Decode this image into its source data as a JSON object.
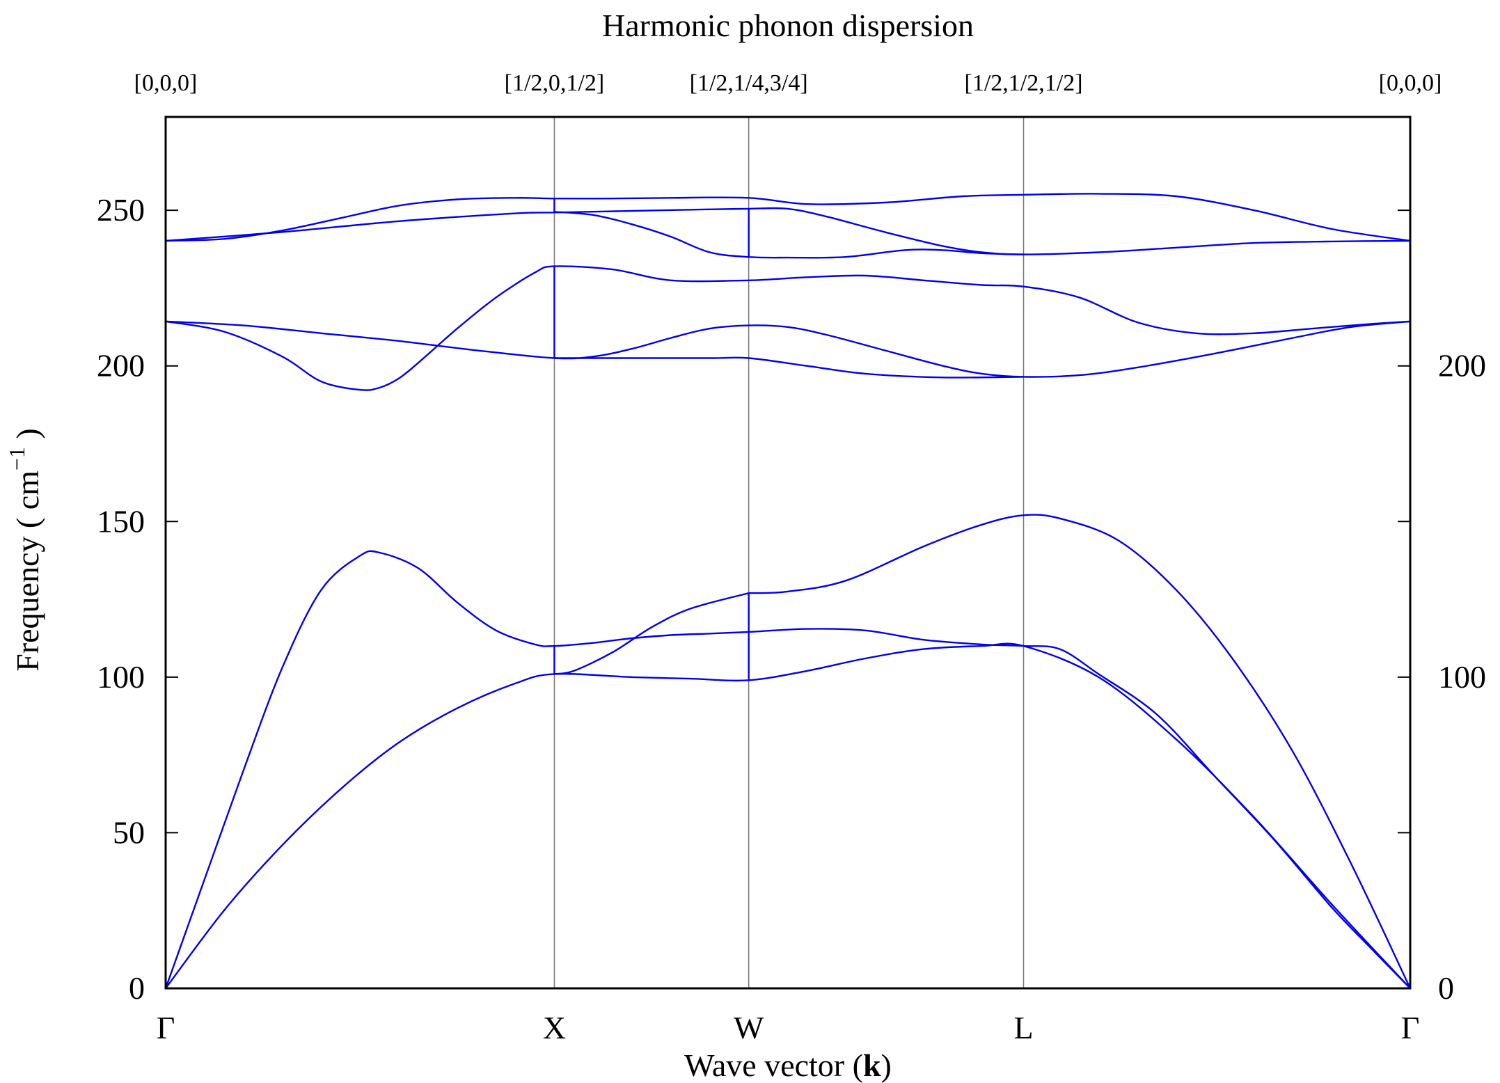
{
  "chart_data": {
    "type": "line",
    "title": "Harmonic phonon dispersion",
    "xlabel": "Wave vector (k)",
    "xlabel_parts": {
      "prefix": "Wave vector (",
      "bold": "k",
      "suffix": ")"
    },
    "ylabel": "Frequency ( cm⁻¹ )",
    "ylabel_parts": {
      "prefix": "Frequency ( cm",
      "sup": "−1",
      "suffix": " )"
    },
    "ylim": [
      0,
      280
    ],
    "xlim": [
      0,
      3.2018
    ],
    "yticks_left": [
      "0",
      "50",
      "100",
      "150",
      "200",
      "250"
    ],
    "yticks_left_values": [
      0,
      50,
      100,
      150,
      200,
      250
    ],
    "yticks_right": [
      "0",
      "100",
      "200"
    ],
    "yticks_right_values": [
      0,
      100,
      200
    ],
    "grid": false,
    "line_color": "#0000ee",
    "high_symmetry_points": [
      {
        "label": "Γ",
        "coords": "[0,0,0]",
        "x": 0.0
      },
      {
        "label": "X",
        "coords": "[1/2,0,1/2]",
        "x": 1.0
      },
      {
        "label": "W",
        "coords": "[1/2,1/4,3/4]",
        "x": 1.5
      },
      {
        "label": "L",
        "coords": "[1/2,1/2,1/2]",
        "x": 2.2071
      },
      {
        "label": "Γ",
        "coords": "[0,0,0]",
        "x": 3.2018
      }
    ],
    "series": [
      {
        "x": [
          0,
          0.15,
          0.3,
          0.45,
          0.6,
          0.75,
          0.9,
          1.0,
          1.2,
          1.35,
          1.5,
          1.65,
          1.8,
          1.95,
          2.1,
          2.2071,
          2.4,
          2.6,
          2.8,
          3.0,
          3.2018
        ],
        "y": [
          0,
          25,
          46,
          64,
          79,
          90,
          98,
          101,
          100,
          99.5,
          99,
          102,
          106,
          109,
          110,
          110,
          100,
          80,
          55,
          27,
          0
        ]
      },
      {
        "x": [
          0,
          0.1,
          0.2,
          0.3,
          0.4,
          0.5,
          0.55,
          0.65,
          0.75,
          0.85,
          0.95,
          1.0,
          1.1,
          1.2,
          1.3,
          1.4,
          1.5,
          1.65,
          1.8,
          1.95,
          2.1,
          2.2071,
          2.3,
          2.4,
          2.55,
          2.7,
          2.85,
          3.0,
          3.1,
          3.2018
        ],
        "y": [
          0,
          35,
          70,
          103,
          128,
          139,
          140,
          135,
          124,
          115,
          110.5,
          110,
          111,
          112.5,
          113.5,
          114,
          114.5,
          115.5,
          115,
          112,
          110.5,
          110,
          109,
          101,
          88,
          68,
          48,
          26,
          13,
          0
        ]
      },
      {
        "x": [
          1.0,
          1.05,
          1.15,
          1.25,
          1.35,
          1.5
        ],
        "y": [
          101,
          102,
          108,
          116,
          122,
          127
        ]
      },
      {
        "x": [
          1.5,
          1.6,
          1.75,
          1.95,
          2.1,
          2.2071,
          2.3,
          2.45,
          2.6,
          2.75,
          2.9,
          3.05,
          3.2018
        ],
        "y": [
          127,
          127.5,
          131,
          142,
          149,
          152,
          151,
          144,
          128,
          105,
          76,
          40,
          0
        ]
      },
      {
        "x": [
          0,
          0.15,
          0.3,
          0.4,
          0.5,
          0.55,
          0.6,
          0.65,
          0.75,
          0.85,
          0.95,
          1.0,
          1.15,
          1.3,
          1.5,
          1.65,
          1.8,
          1.95,
          2.1,
          2.2071,
          2.35,
          2.5,
          2.65,
          2.8,
          2.95,
          3.1,
          3.2018
        ],
        "y": [
          214.3,
          211,
          203,
          195,
          192.3,
          193,
          196,
          201,
          212,
          222,
          230,
          232,
          231,
          227.5,
          227.5,
          228.5,
          229,
          227.5,
          226,
          225.5,
          222,
          214,
          210.5,
          210.5,
          212,
          213.5,
          214.3
        ]
      },
      {
        "x": [
          0,
          0.2,
          0.4,
          0.6,
          0.8,
          1.0,
          1.1,
          1.2,
          1.3,
          1.4,
          1.5,
          1.6,
          1.7,
          1.85,
          2.0,
          2.1,
          2.2071,
          2.35,
          2.5,
          2.7,
          2.9,
          3.05,
          3.2018
        ],
        "y": [
          214.3,
          213,
          210.5,
          208,
          205,
          202.5,
          203,
          205.5,
          209,
          212,
          213,
          212.5,
          210,
          205,
          200,
          197.5,
          196.5,
          197,
          199.5,
          204,
          209,
          212.5,
          214.3
        ]
      },
      {
        "x": [
          1.0,
          1.2,
          1.4,
          1.5,
          1.65,
          1.8,
          2.0,
          2.2071
        ],
        "y": [
          202.5,
          202.5,
          202.5,
          202.5,
          200,
          197.5,
          196.3,
          196.5
        ]
      },
      {
        "x": [
          0,
          0.15,
          0.3,
          0.45,
          0.6,
          0.75,
          0.9,
          1.0,
          1.15,
          1.3,
          1.5,
          1.65,
          1.85,
          2.05,
          2.2071,
          2.4,
          2.6,
          2.8,
          3.0,
          3.2018
        ],
        "y": [
          240.2,
          240.8,
          243.5,
          247.5,
          251.5,
          253.5,
          254,
          253.8,
          253.8,
          254,
          254,
          252,
          252.5,
          254.5,
          255,
          255.3,
          254.5,
          250,
          244,
          240.2
        ]
      },
      {
        "x": [
          0,
          0.3,
          0.6,
          0.9,
          1.0,
          1.2,
          1.4,
          1.5,
          1.6,
          1.7,
          1.85,
          2.0,
          2.1,
          2.2071,
          2.4,
          2.6,
          2.8,
          3.0,
          3.2018
        ],
        "y": [
          240.2,
          243,
          246.5,
          249,
          249.3,
          249.8,
          250.3,
          250.5,
          250.5,
          248,
          243,
          238.5,
          236.5,
          235.8,
          236.5,
          238,
          239.5,
          240,
          240.2
        ]
      },
      {
        "x": [
          1.0,
          1.1,
          1.2,
          1.3,
          1.4,
          1.5,
          1.6,
          1.75,
          1.9,
          2.0,
          2.1,
          2.2071
        ],
        "y": [
          249.5,
          248.5,
          245.5,
          241.5,
          236.5,
          235,
          234.8,
          235,
          237.2,
          237.2,
          236.2,
          235.8
        ]
      },
      {
        "x": [
          1.0,
          1.0
        ],
        "y": [
          101,
          110
        ]
      },
      {
        "x": [
          1.0,
          1.0
        ],
        "y": [
          202.5,
          232
        ]
      },
      {
        "x": [
          1.0,
          1.0
        ],
        "y": [
          249.5,
          254
        ]
      },
      {
        "x": [
          1.5,
          1.5
        ],
        "y": [
          99,
          127
        ]
      },
      {
        "x": [
          1.5,
          1.5
        ],
        "y": [
          235,
          250.5
        ]
      }
    ]
  }
}
